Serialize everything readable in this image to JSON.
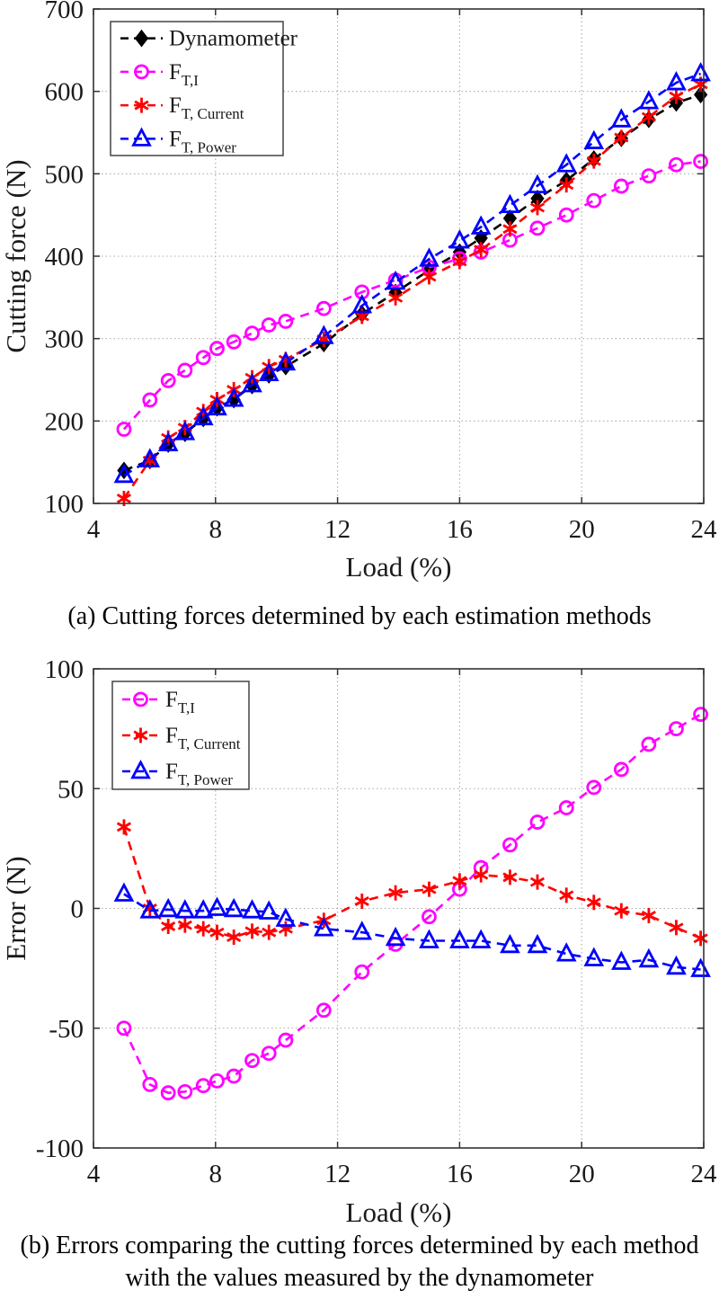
{
  "figure": {
    "captions": {
      "a": "(a) Cutting forces determined by each estimation methods",
      "b_line1": "(b) Errors comparing the cutting forces determined by each method",
      "b_line2": "with the values measured by the dynamometer"
    }
  },
  "colors": {
    "dynamometer": "#000000",
    "ft_i": "#ff00ff",
    "ft_current": "#ff0000",
    "ft_power": "#0000ff",
    "grid": "#aaaaaa",
    "axis": "#333333"
  },
  "chart_data": [
    {
      "id": "cutting-force-chart",
      "type": "line",
      "title": "",
      "xlabel": "Load (%)",
      "ylabel": "Cutting force (N)",
      "xlim": [
        4,
        24
      ],
      "ylim": [
        100,
        700
      ],
      "xticks": [
        4,
        8,
        12,
        16,
        20,
        24
      ],
      "yticks": [
        100,
        200,
        300,
        400,
        500,
        600,
        700
      ],
      "grid": true,
      "legend_position": "top-left",
      "x": [
        5,
        5.85,
        6.45,
        7,
        7.6,
        8.05,
        8.6,
        9.2,
        9.75,
        10.3,
        11.55,
        12.8,
        13.9,
        15,
        16,
        16.7,
        17.65,
        18.55,
        19.5,
        20.4,
        21.3,
        22.2,
        23.1,
        23.9
      ],
      "series": [
        {
          "id": "dynamometer",
          "name": "Dynamometer",
          "label_main": "Dynamometer",
          "label_sub": "",
          "marker": "diamond",
          "color": "#000000",
          "values": [
            140,
            152,
            172,
            185,
            203,
            216,
            226,
            243,
            256,
            266,
            294,
            330,
            356,
            383,
            405,
            422,
            446,
            470,
            492,
            518,
            543,
            566,
            586,
            596
          ]
        },
        {
          "id": "ft_i",
          "name": "F_T,I",
          "label_main": "F",
          "label_sub": "T,I",
          "marker": "circle",
          "color": "#ff00ff",
          "values": [
            190,
            225.5,
            249,
            261.5,
            277,
            288,
            296,
            306.5,
            316.5,
            321,
            336.5,
            356.5,
            371,
            386.5,
            397,
            405,
            419.5,
            434,
            450,
            467.5,
            485,
            497.5,
            511,
            515
          ]
        },
        {
          "id": "ft_current",
          "name": "F_T,Current",
          "label_main": "F",
          "label_sub": "T, Current",
          "marker": "asterisk",
          "color": "#ff0000",
          "values": [
            106,
            152,
            179.5,
            192,
            211.5,
            226,
            238,
            252.5,
            266,
            274.5,
            299,
            327,
            349.5,
            375,
            393.5,
            408,
            433,
            459,
            486.5,
            515.5,
            544,
            569,
            594,
            608.5
          ]
        },
        {
          "id": "ft_power",
          "name": "F_T,Power",
          "label_main": "F",
          "label_sub": "T, Power",
          "marker": "triangle",
          "color": "#0000ff",
          "values": [
            134,
            153,
            172.5,
            186,
            204,
            216,
            226.5,
            244,
            257.5,
            270.5,
            302.5,
            340,
            368.5,
            396.5,
            418.5,
            435.5,
            461.5,
            485.5,
            511,
            539,
            565.5,
            587.5,
            610.5,
            621.5
          ]
        }
      ]
    },
    {
      "id": "error-chart",
      "type": "line",
      "title": "",
      "xlabel": "Load (%)",
      "ylabel": "Error (N)",
      "xlim": [
        4,
        24
      ],
      "ylim": [
        -100,
        100
      ],
      "xticks": [
        4,
        8,
        12,
        16,
        20,
        24
      ],
      "yticks": [
        -100,
        -50,
        0,
        50,
        100
      ],
      "grid": true,
      "legend_position": "top-left",
      "x": [
        5,
        5.85,
        6.45,
        7,
        7.6,
        8.05,
        8.6,
        9.2,
        9.75,
        10.3,
        11.55,
        12.8,
        13.9,
        15,
        16,
        16.7,
        17.65,
        18.55,
        19.5,
        20.4,
        21.3,
        22.2,
        23.1,
        23.9
      ],
      "series": [
        {
          "id": "ft_i",
          "name": "F_T,I",
          "label_main": "F",
          "label_sub": "T,I",
          "marker": "circle",
          "color": "#ff00ff",
          "values": [
            -50,
            -73.5,
            -77,
            -76.5,
            -74,
            -72,
            -70,
            -63.5,
            -60.5,
            -55,
            -42.5,
            -26.5,
            -15,
            -3.5,
            8,
            17,
            26.5,
            36,
            42,
            50.5,
            58,
            68.5,
            75,
            81
          ]
        },
        {
          "id": "ft_current",
          "name": "F_T,Current",
          "label_main": "F",
          "label_sub": "T, Current",
          "marker": "asterisk",
          "color": "#ff0000",
          "values": [
            34,
            0,
            -7.5,
            -7,
            -8.5,
            -10,
            -12,
            -9.5,
            -10,
            -8.5,
            -5,
            3,
            6.5,
            8,
            11.5,
            14,
            13,
            11,
            5.5,
            2.5,
            -1,
            -3,
            -8,
            -12.5
          ]
        },
        {
          "id": "ft_power",
          "name": "F_T,Power",
          "label_main": "F",
          "label_sub": "T, Power",
          "marker": "triangle",
          "color": "#0000ff",
          "values": [
            6,
            -1,
            -0.5,
            -1,
            -1,
            0,
            -0.5,
            -1,
            -1.5,
            -4.5,
            -8.5,
            -10,
            -12.5,
            -13.5,
            -13.5,
            -13.5,
            -15.5,
            -15.5,
            -19,
            -21,
            -22.5,
            -21.5,
            -24.5,
            -25.5
          ]
        }
      ]
    }
  ]
}
